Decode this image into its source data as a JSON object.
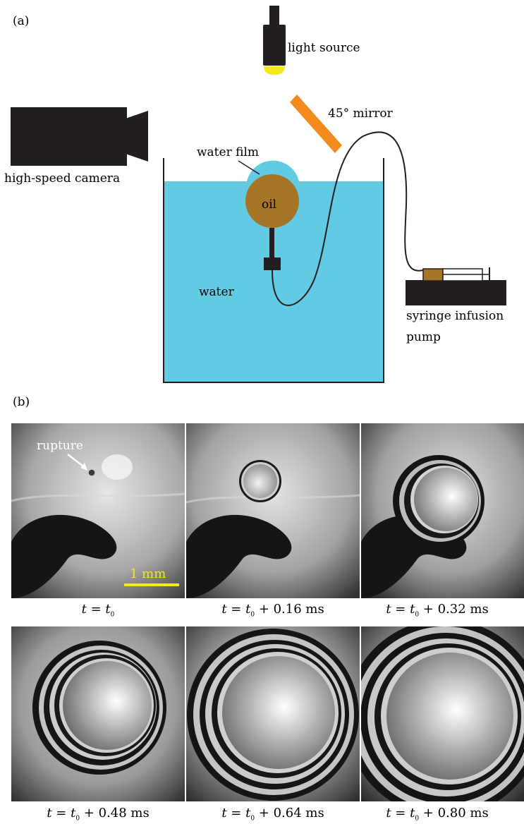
{
  "panel_a": {
    "tag": "(a)",
    "labels": {
      "light_source": "light source",
      "mirror": "45° mirror",
      "camera": "high-speed camera",
      "water_film": "water film",
      "oil": "oil",
      "water": "water",
      "pump_line1": "syringe infusion",
      "pump_line2": "pump"
    },
    "colors": {
      "water": "#62cae2",
      "oil": "#a57526",
      "mirror": "#f28a1e",
      "light": "#f5e81c",
      "dark": "#231f20"
    }
  },
  "panel_b": {
    "tag": "(b)",
    "rupture_label": "rupture",
    "scale_label": "1 mm",
    "scale_color": "#f5e81c",
    "frames": [
      {
        "caption_pre": "t",
        "caption_eq": " = ",
        "caption_t": "t",
        "caption_sub": "0",
        "caption_suffix": ""
      },
      {
        "caption_pre": "t",
        "caption_eq": " = ",
        "caption_t": "t",
        "caption_sub": "0",
        "caption_suffix": " + 0.16 ms"
      },
      {
        "caption_pre": "t",
        "caption_eq": " = ",
        "caption_t": "t",
        "caption_sub": "0",
        "caption_suffix": " + 0.32 ms"
      },
      {
        "caption_pre": "t",
        "caption_eq": " = ",
        "caption_t": "t",
        "caption_sub": "0",
        "caption_suffix": " + 0.48 ms"
      },
      {
        "caption_pre": "t",
        "caption_eq": " = ",
        "caption_t": "t",
        "caption_sub": "0",
        "caption_suffix": " + 0.64 ms"
      },
      {
        "caption_pre": "t",
        "caption_eq": " = ",
        "caption_t": "t",
        "caption_sub": "0",
        "caption_suffix": " + 0.80 ms"
      }
    ]
  }
}
